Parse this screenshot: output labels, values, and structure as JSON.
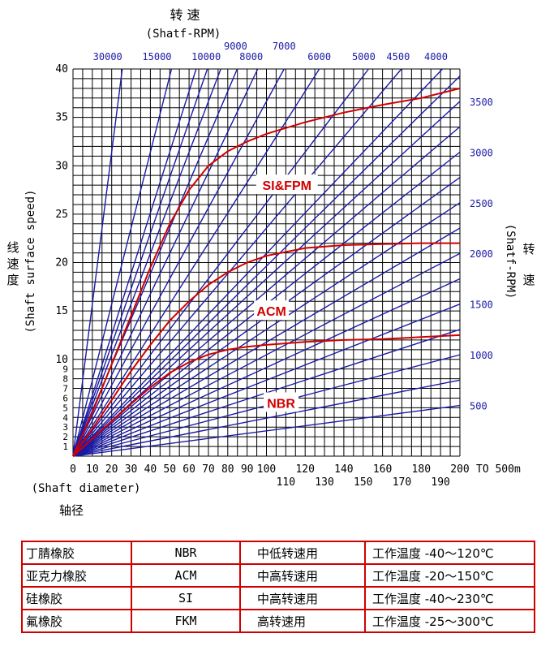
{
  "chart_data": {
    "type": "line",
    "title": "转 速",
    "title_sub": "(Shatf-RPM)",
    "ylabel_cn": [
      "线",
      "速",
      "度"
    ],
    "ylabel_en": "(Shaft surface speed)",
    "right_label_cn": [
      "转",
      "速"
    ],
    "right_label_en": "(Shatf-RPM)",
    "xlabel_en": "(Shaft diameter)",
    "xlabel_cn": "轴径",
    "x_range": [
      0,
      200
    ],
    "x_extra_label": "TO 500m",
    "y_range": [
      0,
      40
    ],
    "grid": true,
    "y_ticks": [
      1,
      2,
      3,
      4,
      5,
      6,
      7,
      8,
      9,
      10,
      15,
      20,
      25,
      30,
      35,
      40
    ],
    "x_ticks_row1": [
      0,
      10,
      20,
      30,
      40,
      50,
      60,
      70,
      80,
      90,
      100,
      120,
      140,
      160,
      180,
      200
    ],
    "x_ticks_row2": [
      110,
      130,
      150,
      170,
      190
    ],
    "rpm_lines_top": [
      30000,
      15000,
      10000,
      9000,
      8000,
      7000,
      6000,
      5000,
      4500,
      4000
    ],
    "rpm_lines_right": [
      3500,
      3000,
      2500,
      2000,
      1500,
      1000,
      500
    ],
    "rpm_lines_unlabeled": [
      12000,
      11000,
      3750,
      3250,
      2750,
      2250,
      1750,
      1250,
      750
    ],
    "series": [
      {
        "name": "SI&FPM",
        "color": "#d00000",
        "x": [
          0,
          10,
          20,
          30,
          40,
          50,
          60,
          70,
          80,
          90,
          100,
          120,
          140,
          160,
          180,
          200
        ],
        "y": [
          0,
          4.5,
          9.5,
          14.5,
          19.5,
          24,
          27.5,
          30,
          31.5,
          32.5,
          33.3,
          34.5,
          35.5,
          36.3,
          37.0,
          38.0
        ]
      },
      {
        "name": "ACM",
        "color": "#d00000",
        "x": [
          0,
          10,
          20,
          30,
          40,
          50,
          60,
          70,
          80,
          90,
          100,
          120,
          140,
          160,
          180,
          200
        ],
        "y": [
          0,
          2.8,
          5.8,
          8.8,
          11.5,
          14,
          16,
          17.7,
          19,
          20,
          20.7,
          21.5,
          21.8,
          21.9,
          22.0,
          22.0
        ]
      },
      {
        "name": "NBR",
        "color": "#d00000",
        "x": [
          0,
          10,
          20,
          30,
          40,
          50,
          60,
          70,
          80,
          90,
          100,
          120,
          140,
          160,
          180,
          200
        ],
        "y": [
          0,
          1.8,
          3.6,
          5.4,
          7.1,
          8.6,
          9.7,
          10.5,
          11.0,
          11.3,
          11.5,
          11.8,
          12.0,
          12.1,
          12.3,
          12.5
        ]
      }
    ]
  },
  "table": {
    "rows": [
      {
        "material": "丁腈橡胶",
        "code": "NBR",
        "usage": "中低转速用",
        "temp": "工作温度 -40～120℃"
      },
      {
        "material": "亚克力橡胶",
        "code": "ACM",
        "usage": "中高转速用",
        "temp": "工作温度 -20～150℃"
      },
      {
        "material": "硅橡胶",
        "code": "SI",
        "usage": "中高转速用",
        "temp": "工作温度 -40～230℃"
      },
      {
        "material": "氟橡胶",
        "code": "FKM",
        "usage": "高转速用",
        "temp": "工作温度 -25～300℃"
      }
    ]
  },
  "colors": {
    "grid": "#000000",
    "rpm": "#1a1aa6",
    "curve": "#d00000",
    "table_border": "#d00000"
  }
}
